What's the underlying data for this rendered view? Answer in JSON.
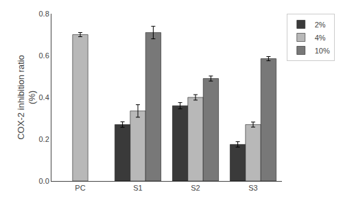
{
  "chart_data": {
    "type": "bar",
    "categories": [
      "PC",
      "S1",
      "S2",
      "S3"
    ],
    "series": [
      {
        "name": "2%",
        "color": "#3a3a3a",
        "values": [
          null,
          0.27,
          0.36,
          0.175
        ],
        "errors": [
          null,
          0.013,
          0.015,
          0.013
        ]
      },
      {
        "name": "4%",
        "color": "#b8b8b8",
        "values": [
          0.7,
          0.335,
          0.4,
          0.27
        ],
        "errors": [
          0.01,
          0.03,
          0.013,
          0.012
        ]
      },
      {
        "name": "10%",
        "color": "#787878",
        "values": [
          null,
          0.71,
          0.49,
          0.585
        ],
        "errors": [
          null,
          0.03,
          0.012,
          0.01
        ]
      }
    ],
    "ylabel": "COX-2 inhibition ratio\n(%)",
    "ylim": [
      0.0,
      0.8
    ],
    "yticks": [
      {
        "value": 0,
        "label": "0.0"
      },
      0.2,
      0.4,
      0.6,
      0.8
    ],
    "grid": false,
    "legend": "right"
  }
}
